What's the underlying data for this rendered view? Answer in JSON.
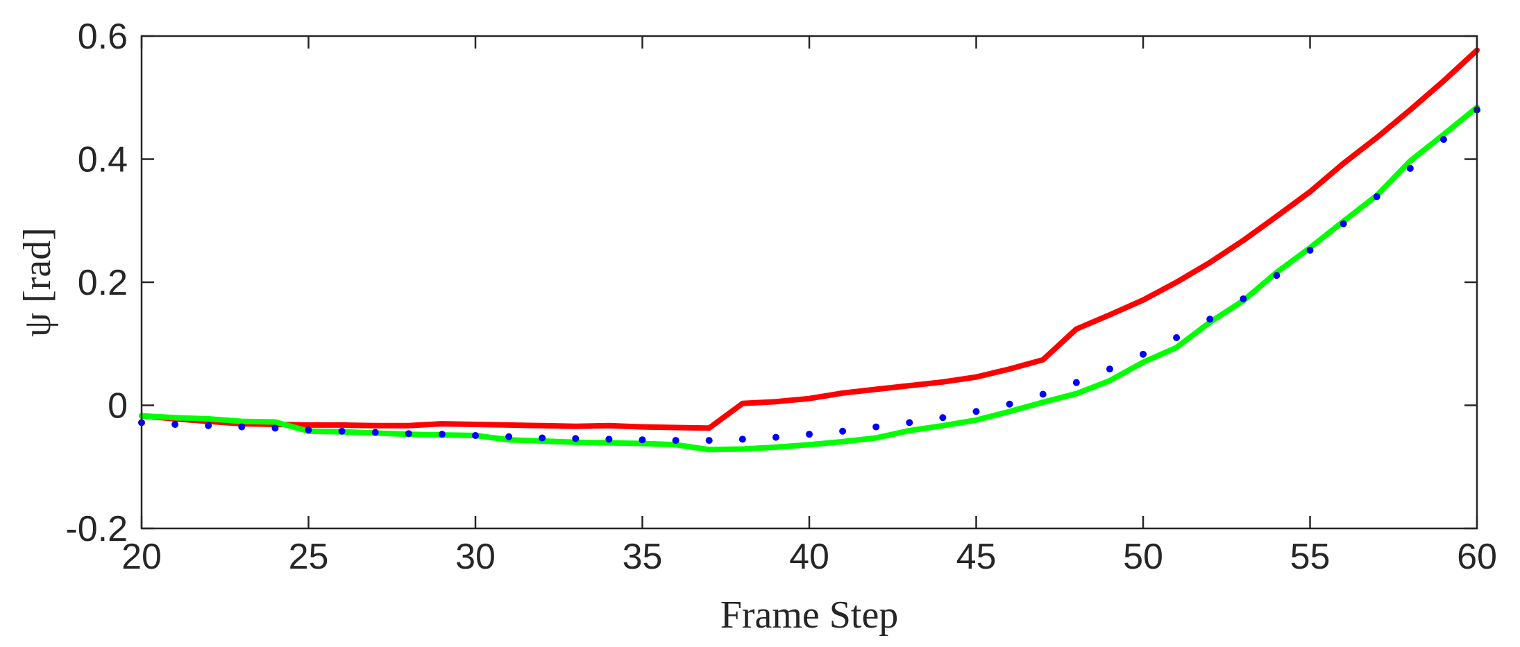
{
  "chart_data": {
    "type": "line",
    "title": "",
    "xlabel": "Frame Step",
    "ylabel": "ψ [rad]",
    "xlim": [
      20,
      60
    ],
    "ylim": [
      -0.2,
      0.6
    ],
    "xticks": [
      20,
      25,
      30,
      35,
      40,
      45,
      50,
      55,
      60
    ],
    "yticks": [
      -0.2,
      0,
      0.2,
      0.4,
      0.6
    ],
    "xtick_labels": [
      "20",
      "25",
      "30",
      "35",
      "40",
      "45",
      "50",
      "55",
      "60"
    ],
    "ytick_labels": [
      "-0.2",
      "0",
      "0.2",
      "0.4",
      "0.6"
    ],
    "grid": false,
    "legend": "none",
    "series": [
      {
        "style": "solid",
        "color": "#ff0000",
        "x": [
          20,
          21,
          22,
          23,
          24,
          25,
          26,
          27,
          28,
          29,
          30,
          31,
          32,
          33,
          34,
          35,
          36,
          37,
          38,
          39,
          40,
          41,
          42,
          43,
          44,
          45,
          46,
          47,
          48,
          49,
          50,
          51,
          52,
          53,
          54,
          55,
          56,
          57,
          58,
          59,
          60
        ],
        "y": [
          -0.017,
          -0.022,
          -0.026,
          -0.03,
          -0.031,
          -0.032,
          -0.032,
          -0.033,
          -0.033,
          -0.03,
          -0.031,
          -0.032,
          -0.033,
          -0.034,
          -0.033,
          -0.035,
          -0.036,
          -0.037,
          0.003,
          0.006,
          0.011,
          0.02,
          0.026,
          0.032,
          0.038,
          0.046,
          0.059,
          0.074,
          0.124,
          0.147,
          0.171,
          0.2,
          0.232,
          0.268,
          0.307,
          0.347,
          0.393,
          0.435,
          0.48,
          0.527,
          0.577
        ]
      },
      {
        "style": "solid",
        "color": "#00ff00",
        "x": [
          20,
          21,
          22,
          23,
          24,
          25,
          26,
          27,
          28,
          29,
          30,
          31,
          32,
          33,
          34,
          35,
          36,
          37,
          38,
          39,
          40,
          41,
          42,
          43,
          44,
          45,
          46,
          47,
          48,
          49,
          50,
          51,
          52,
          53,
          54,
          55,
          56,
          57,
          58,
          59,
          60
        ],
        "y": [
          -0.017,
          -0.02,
          -0.022,
          -0.026,
          -0.027,
          -0.042,
          -0.043,
          -0.045,
          -0.047,
          -0.048,
          -0.049,
          -0.056,
          -0.058,
          -0.06,
          -0.061,
          -0.062,
          -0.064,
          -0.072,
          -0.071,
          -0.068,
          -0.064,
          -0.059,
          -0.053,
          -0.041,
          -0.033,
          -0.024,
          -0.01,
          0.005,
          0.019,
          0.04,
          0.07,
          0.094,
          0.135,
          0.17,
          0.216,
          0.256,
          0.299,
          0.341,
          0.397,
          0.44,
          0.484
        ]
      },
      {
        "style": "dotted",
        "color": "#0000ff",
        "x": [
          20,
          21,
          22,
          23,
          24,
          25,
          26,
          27,
          28,
          29,
          30,
          31,
          32,
          33,
          34,
          35,
          36,
          37,
          38,
          39,
          40,
          41,
          42,
          43,
          44,
          45,
          46,
          47,
          48,
          49,
          50,
          51,
          52,
          53,
          54,
          55,
          56,
          57,
          58,
          59,
          60
        ],
        "y": [
          -0.028,
          -0.031,
          -0.033,
          -0.035,
          -0.037,
          -0.04,
          -0.042,
          -0.044,
          -0.046,
          -0.047,
          -0.049,
          -0.051,
          -0.053,
          -0.054,
          -0.055,
          -0.056,
          -0.057,
          -0.057,
          -0.055,
          -0.052,
          -0.047,
          -0.042,
          -0.035,
          -0.028,
          -0.02,
          -0.01,
          0.002,
          0.018,
          0.037,
          0.059,
          0.083,
          0.11,
          0.14,
          0.173,
          0.211,
          0.252,
          0.295,
          0.339,
          0.385,
          0.432,
          0.48
        ]
      }
    ]
  }
}
